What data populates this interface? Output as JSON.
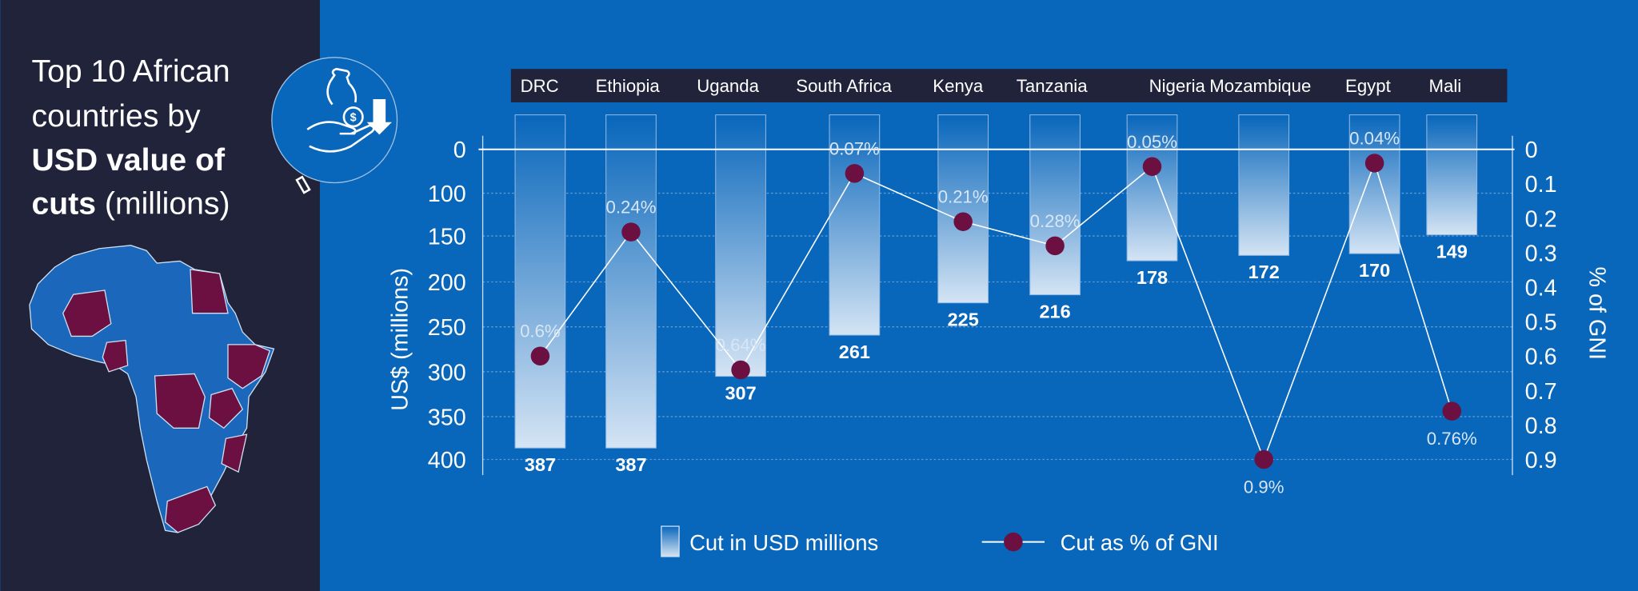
{
  "title": {
    "line1": "Top 10 African",
    "line2": "countries by",
    "line3_bold": "USD value of",
    "line4_bold": "cuts",
    "line4_rest": " (millions)"
  },
  "icon": "hand-money-bag-down-arrow-icon",
  "colors": {
    "background": "#0866bb",
    "panel": "#20233a",
    "header_bar": "#20233a",
    "dot": "#6b1040",
    "line": "#ffffff"
  },
  "chart_data": {
    "type": "bar+line",
    "categories": [
      "DRC",
      "Ethiopia",
      "Uganda",
      "South Africa",
      "Kenya",
      "Tanzania",
      "Nigeria",
      "Mozambique",
      "Egypt",
      "Mali"
    ],
    "series": [
      {
        "name": "Cut in USD millions",
        "type": "bar",
        "axis": "left",
        "values": [
          387,
          387,
          307,
          261,
          225,
          216,
          178,
          172,
          170,
          149
        ],
        "labels": [
          "387",
          "387",
          "307",
          "261",
          "225",
          "216",
          "178",
          "172",
          "170",
          "149"
        ]
      },
      {
        "name": "Cut as % of GNI",
        "type": "line",
        "axis": "right",
        "values": [
          0.6,
          0.24,
          0.64,
          0.07,
          0.21,
          0.28,
          0.05,
          0.9,
          0.04,
          0.76
        ],
        "labels": [
          "0.6%",
          "0.24%",
          "0.64%",
          "0.07%",
          "0.21%",
          "0.28%",
          "0.05%",
          "0.9%",
          "0.04%",
          "0.76%"
        ]
      }
    ],
    "ylabel": "US$ (millions)",
    "ylabel_right": "% of GNI",
    "yticks": [
      "0",
      "100",
      "150",
      "200",
      "250",
      "300",
      "350",
      "400"
    ],
    "yticks_right": [
      "0",
      "0.1",
      "0.2",
      "0.3",
      "0.4",
      "0.5",
      "0.6",
      "0.7",
      "0.8",
      "0.9"
    ],
    "ylim": [
      0,
      400
    ],
    "ylim_right": [
      0,
      0.9
    ],
    "y_inverted": true,
    "grid": true,
    "legend_position": "bottom"
  }
}
